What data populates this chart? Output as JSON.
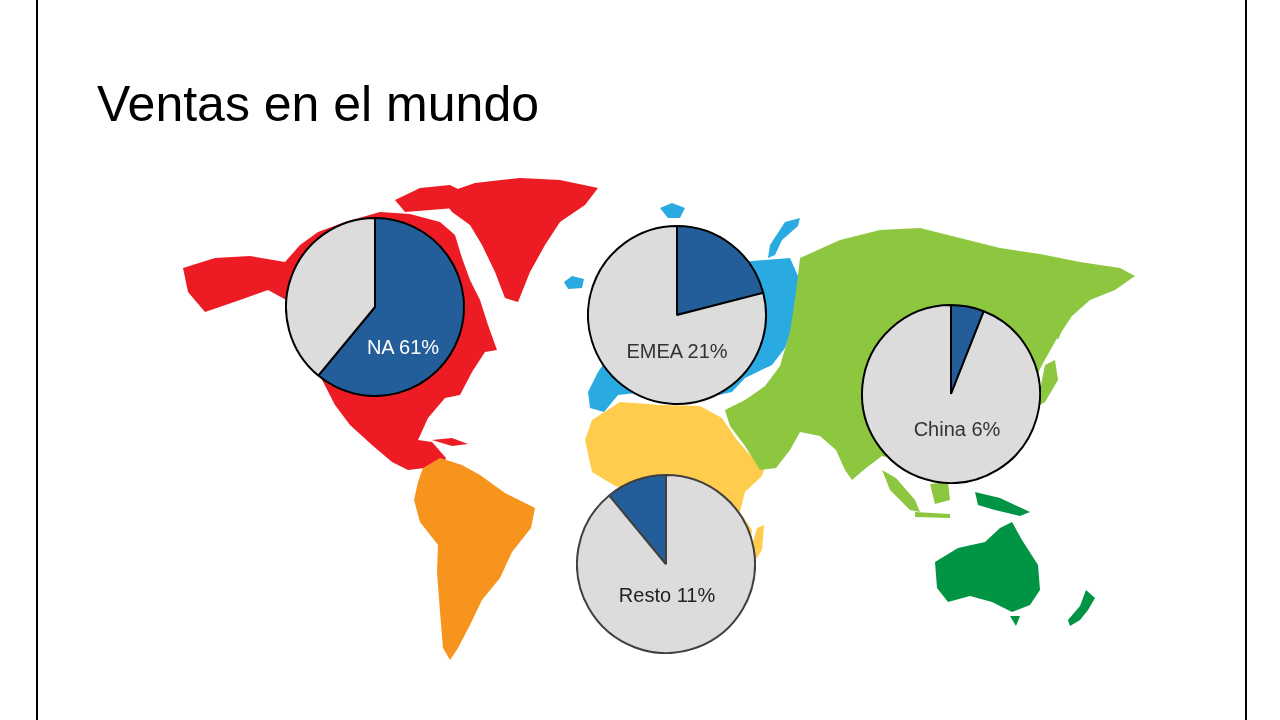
{
  "chart_data": [
    {
      "type": "pie",
      "title": "Ventas en el mundo",
      "categories": [
        null,
        null
      ],
      "values": [
        61,
        39
      ],
      "colors": [
        "#245e9a",
        "#dcdcdc"
      ],
      "annotations": [
        "NA 61%"
      ]
    },
    {
      "type": "pie",
      "categories": [
        null,
        null
      ],
      "values": [
        21,
        79
      ],
      "colors": [
        "#245e9a",
        "#dcdcdc"
      ],
      "annotations": [
        "EMEA 21%"
      ]
    },
    {
      "type": "pie",
      "categories": [
        null,
        null
      ],
      "values": [
        6,
        94
      ],
      "colors": [
        "#245e9a",
        "#dcdcdc"
      ],
      "annotations": [
        "China 6%"
      ]
    },
    {
      "type": "pie",
      "categories": [
        null,
        null
      ],
      "values": [
        89,
        11
      ],
      "colors": [
        "#dcdcdc",
        "#245e9a"
      ],
      "annotations": [
        "Resto 11%"
      ]
    }
  ]
}
